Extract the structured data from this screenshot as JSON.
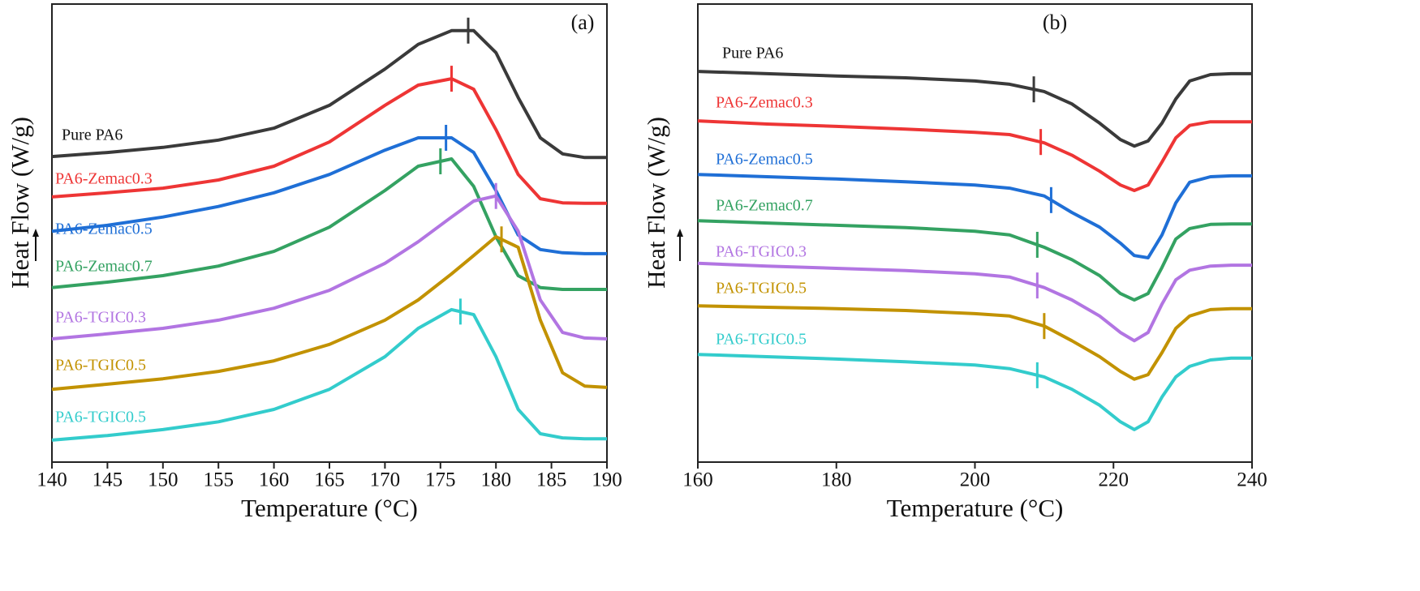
{
  "chart_data": [
    {
      "type": "line",
      "panel_label": "(a)",
      "xlabel": "Temperature (°C)",
      "ylabel": "Heat Flow (W/g)",
      "xlim": [
        140,
        190
      ],
      "xticks": [
        140,
        145,
        150,
        155,
        160,
        165,
        170,
        175,
        180,
        185,
        190
      ],
      "ylim": [
        0,
        100
      ],
      "x": [
        140,
        145,
        150,
        155,
        160,
        165,
        170,
        173,
        176,
        178,
        180,
        182,
        184,
        186,
        188,
        190
      ],
      "series": [
        {
          "name": "Pure PA6",
          "color": "#3a3a3a",
          "peak": 177.5,
          "values": [
            66.7,
            67.6,
            68.7,
            70.3,
            72.9,
            77.9,
            85.8,
            91.2,
            94.2,
            94.2,
            89.4,
            79.6,
            70.8,
            67.3,
            66.5,
            66.5
          ]
        },
        {
          "name": "PA6-Zemac0.3",
          "color": "#ee3535",
          "peak": 176,
          "values": [
            57.9,
            58.8,
            59.8,
            61.6,
            64.6,
            69.9,
            77.9,
            82.3,
            83.7,
            81.4,
            72.6,
            62.8,
            57.5,
            56.6,
            56.5,
            56.5
          ]
        },
        {
          "name": "PA6-Zemac0.5",
          "color": "#1f6fd6",
          "peak": 175.5,
          "values": [
            50.4,
            51.7,
            53.5,
            55.8,
            58.8,
            62.8,
            68.1,
            70.8,
            70.8,
            67.6,
            59.3,
            49.6,
            46.4,
            45.7,
            45.5,
            45.5
          ]
        },
        {
          "name": "PA6-Zemac0.7",
          "color": "#34a262",
          "peak": 175,
          "values": [
            38.1,
            39.3,
            40.7,
            42.8,
            46.0,
            51.3,
            59.3,
            64.6,
            66.2,
            60.2,
            49.2,
            40.7,
            38.1,
            37.7,
            37.7,
            37.7
          ]
        },
        {
          "name": "PA6-TGIC0.3",
          "color": "#b275e2",
          "peak": 180,
          "values": [
            26.9,
            28.0,
            29.2,
            31.0,
            33.6,
            37.5,
            43.4,
            48.1,
            53.5,
            57.0,
            58.1,
            50.4,
            35.4,
            28.3,
            27.1,
            26.9
          ]
        },
        {
          "name": "PA6-TGIC0.5",
          "color": "#c29200",
          "peak": 180.5,
          "values": [
            15.9,
            17.0,
            18.2,
            19.8,
            22.1,
            25.7,
            31.0,
            35.4,
            41.1,
            45.1,
            49.2,
            46.9,
            31.0,
            19.5,
            16.6,
            16.3
          ]
        },
        {
          "name": "PA6-TGIC0.5",
          "color": "#33cccc",
          "peak": 176.8,
          "values": [
            4.8,
            5.8,
            7.1,
            8.8,
            11.5,
            15.9,
            23.0,
            29.2,
            33.3,
            32.2,
            23.0,
            11.5,
            6.2,
            5.3,
            5.1,
            5.1
          ]
        }
      ]
    },
    {
      "type": "line",
      "panel_label": "(b)",
      "xlabel": "Temperature (°C)",
      "ylabel": "Heat Flow (W/g)",
      "xlim": [
        160,
        240
      ],
      "xticks": [
        160,
        180,
        200,
        220,
        240
      ],
      "ylim": [
        0,
        100
      ],
      "x": [
        160,
        170,
        180,
        190,
        200,
        205,
        210,
        214,
        218,
        221,
        223,
        225,
        227,
        229,
        231,
        234,
        237,
        240
      ],
      "series": [
        {
          "name": "Pure PA6",
          "color": "#3a3a3a",
          "peak": 208.5,
          "values": [
            85.3,
            84.8,
            84.3,
            83.9,
            83.2,
            82.5,
            80.9,
            78.2,
            74.0,
            70.4,
            69.0,
            70.1,
            74.0,
            79.3,
            83.2,
            84.6,
            84.8,
            84.8
          ]
        },
        {
          "name": "PA6-Zemac0.3",
          "color": "#ee3535",
          "peak": 209.5,
          "values": [
            74.5,
            73.8,
            73.3,
            72.7,
            72.0,
            71.5,
            69.7,
            67.0,
            63.5,
            60.5,
            59.3,
            60.5,
            65.5,
            70.8,
            73.5,
            74.3,
            74.3,
            74.3
          ]
        },
        {
          "name": "PA6-Zemac0.5",
          "color": "#1f6fd6",
          "peak": 211,
          "values": [
            62.8,
            62.3,
            61.8,
            61.2,
            60.5,
            59.8,
            58.1,
            54.5,
            51.3,
            47.8,
            45.1,
            44.6,
            49.6,
            56.6,
            61.1,
            62.3,
            62.5,
            62.5
          ]
        },
        {
          "name": "PA6-Zemac0.7",
          "color": "#34a262",
          "peak": 209,
          "values": [
            52.7,
            52.2,
            51.7,
            51.2,
            50.4,
            49.6,
            46.9,
            44.2,
            40.7,
            36.8,
            35.4,
            36.8,
            42.5,
            48.7,
            51.0,
            51.9,
            52.0,
            52.0
          ]
        },
        {
          "name": "PA6-TGIC0.3",
          "color": "#b275e2",
          "peak": 209,
          "values": [
            43.4,
            42.8,
            42.3,
            41.8,
            41.1,
            40.4,
            38.1,
            35.4,
            31.9,
            28.3,
            26.5,
            28.3,
            34.5,
            39.8,
            41.9,
            42.8,
            43.0,
            43.0
          ]
        },
        {
          "name": "PA6-TGIC0.5",
          "color": "#c29200",
          "peak": 210,
          "values": [
            34.1,
            33.8,
            33.5,
            33.1,
            32.4,
            31.9,
            29.7,
            26.5,
            23.0,
            19.8,
            18.1,
            19.1,
            23.9,
            29.2,
            31.9,
            33.3,
            33.5,
            33.5
          ]
        },
        {
          "name": "PA6-TGIC0.5",
          "color": "#33cccc",
          "peak": 209,
          "values": [
            23.5,
            23.0,
            22.5,
            21.9,
            21.2,
            20.4,
            18.6,
            15.9,
            12.4,
            8.8,
            7.1,
            8.8,
            14.2,
            18.6,
            20.9,
            22.3,
            22.7,
            22.7
          ]
        }
      ]
    }
  ]
}
